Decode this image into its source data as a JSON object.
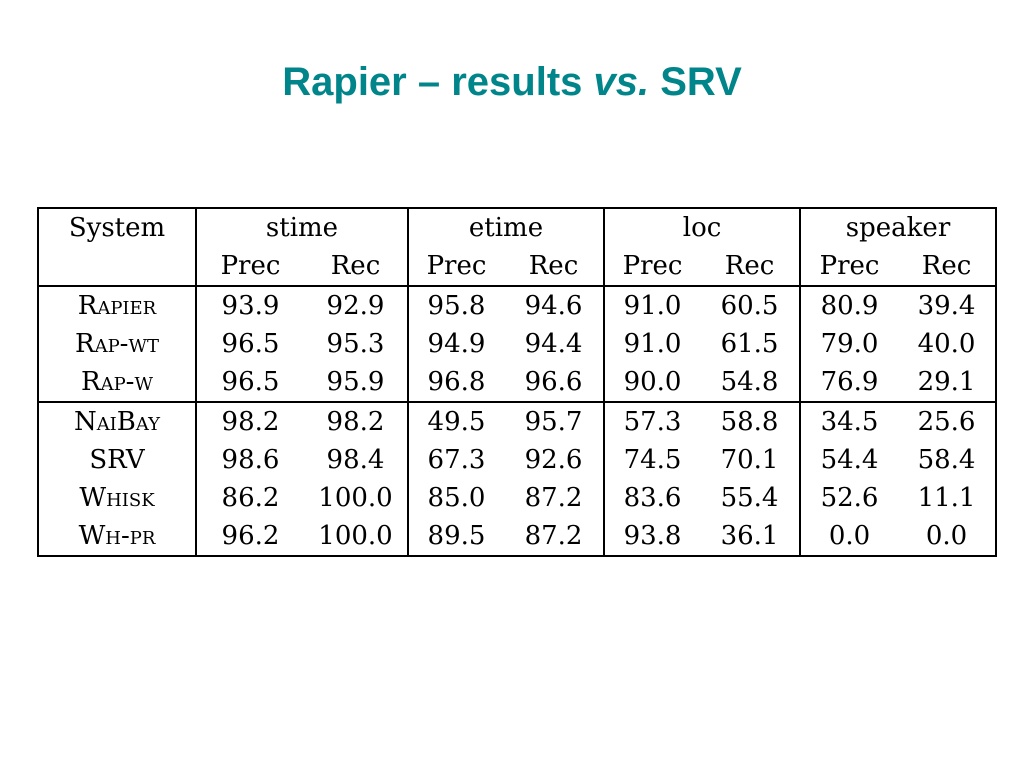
{
  "title": {
    "part1": "Rapier – results ",
    "part2": "vs.",
    "part3": " SRV"
  },
  "table": {
    "system_header": "System",
    "groups": [
      "stime",
      "etime",
      "loc",
      "speaker"
    ],
    "subheaders": [
      "Prec",
      "Rec"
    ],
    "rows": [
      {
        "system": "Rapier",
        "values": [
          "93.9",
          "92.9",
          "95.8",
          "94.6",
          "91.0",
          "60.5",
          "80.9",
          "39.4"
        ]
      },
      {
        "system": "Rap-wt",
        "values": [
          "96.5",
          "95.3",
          "94.9",
          "94.4",
          "91.0",
          "61.5",
          "79.0",
          "40.0"
        ]
      },
      {
        "system": "Rap-w",
        "values": [
          "96.5",
          "95.9",
          "96.8",
          "96.6",
          "90.0",
          "54.8",
          "76.9",
          "29.1"
        ]
      },
      {
        "system": "NaiBay",
        "values": [
          "98.2",
          "98.2",
          "49.5",
          "95.7",
          "57.3",
          "58.8",
          "34.5",
          "25.6"
        ]
      },
      {
        "system": "SRV",
        "values": [
          "98.6",
          "98.4",
          "67.3",
          "92.6",
          "74.5",
          "70.1",
          "54.4",
          "58.4"
        ]
      },
      {
        "system": "Whisk",
        "values": [
          "86.2",
          "100.0",
          "85.0",
          "87.2",
          "83.6",
          "55.4",
          "52.6",
          "11.1"
        ]
      },
      {
        "system": "Wh-pr",
        "values": [
          "96.2",
          "100.0",
          "89.5",
          "87.2",
          "93.8",
          "36.1",
          "0.0",
          "0.0"
        ]
      }
    ]
  }
}
